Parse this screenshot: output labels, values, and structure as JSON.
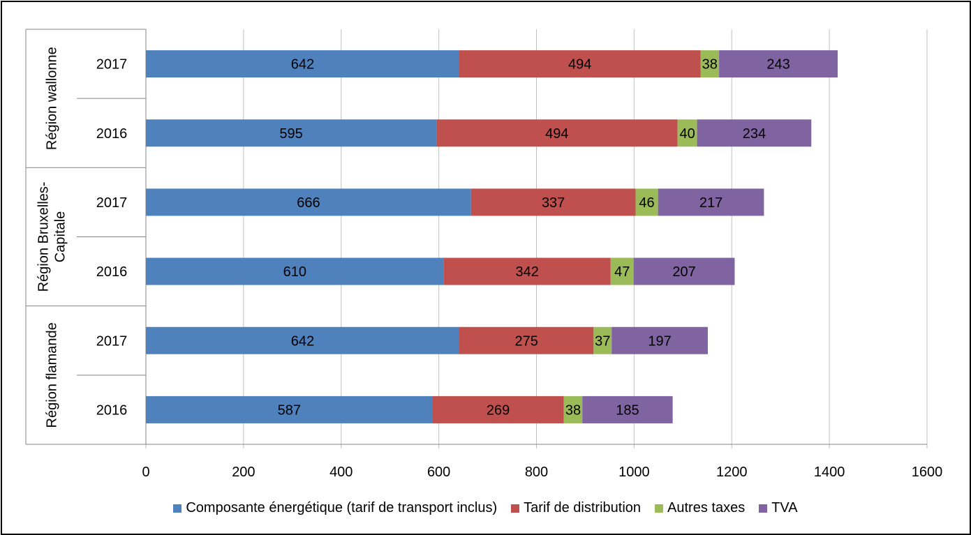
{
  "chart_data": {
    "type": "bar",
    "orientation": "horizontal",
    "stacked": true,
    "title": "",
    "xlabel": "",
    "ylabel": "",
    "xlim": [
      0,
      1600
    ],
    "x_ticks": [
      "0",
      "200",
      "400",
      "600",
      "800",
      "1000",
      "1200",
      "1400",
      "1600"
    ],
    "grid": "vertical",
    "legend_position": "bottom",
    "groups": [
      {
        "name": "Région flamande",
        "categories": [
          "2016",
          "2017"
        ]
      },
      {
        "name": "Région Bruxelles-Capitale",
        "name_lines": [
          "Région Bruxelles-",
          "Capitale"
        ],
        "categories": [
          "2016",
          "2017"
        ]
      },
      {
        "name": "Région wallonne",
        "categories": [
          "2016",
          "2017"
        ]
      }
    ],
    "categories": [
      "Région flamande 2016",
      "Région flamande 2017",
      "Région Bruxelles-Capitale 2016",
      "Région Bruxelles-Capitale 2017",
      "Région wallonne 2016",
      "Région wallonne 2017"
    ],
    "series": [
      {
        "name": "Composante énergétique (tarif de transport inclus)",
        "color": "#4F81BD",
        "values": [
          587,
          642,
          610,
          666,
          595,
          642
        ]
      },
      {
        "name": "Tarif de distribution",
        "color": "#C0504D",
        "values": [
          269,
          275,
          342,
          337,
          494,
          494
        ]
      },
      {
        "name": "Autres taxes",
        "color": "#9BBB59",
        "values": [
          38,
          37,
          47,
          46,
          40,
          38
        ]
      },
      {
        "name": "TVA",
        "color": "#8064A2",
        "values": [
          185,
          197,
          207,
          217,
          234,
          243
        ]
      }
    ]
  }
}
